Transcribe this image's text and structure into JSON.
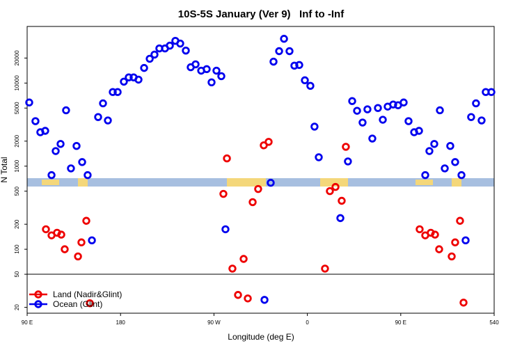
{
  "chart_data": {
    "type": "scatter",
    "title": "10S-5S January (Ver 9)   Inf to -Inf",
    "x_label": "Longitude (deg E)",
    "y_label": "N Total",
    "xlim": [
      90,
      540
    ],
    "xticks": [
      {
        "value": 90,
        "label": "90 E"
      },
      180,
      {
        "value": 270,
        "label": "90 W"
      },
      {
        "value": 360,
        "label": "0"
      },
      {
        "value": 450,
        "label": "90 E"
      },
      540
    ],
    "ylim": [
      17,
      48000
    ],
    "log_y": true,
    "yticks": [
      20,
      50,
      100,
      200,
      500,
      1000,
      2000,
      5000,
      10000,
      20000
    ],
    "hline": 50,
    "legend": "lower left",
    "series": [
      {
        "name": "Land (Nadir&Glint)",
        "color": "#ee0000",
        "x": [
          108.1,
          113.5,
          118.8,
          122.9,
          126.2,
          139.0,
          142.3,
          147.0,
          150.4,
          279.1,
          282.5,
          287.8,
          293.2,
          298.6,
          302.6,
          307.3,
          312.6,
          318.0,
          322.7,
          377.0,
          381.7,
          387.1,
          393.1,
          397.1,
          468.2,
          473.6,
          478.9,
          483.0,
          487.0,
          499.1,
          502.4,
          507.1,
          510.5
        ],
        "values": [
          174,
          147,
          158,
          150,
          100,
          82,
          121,
          220,
          22.4,
          464,
          1240,
          58.5,
          28.2,
          76.5,
          25.6,
          369,
          531,
          1780,
          1960,
          58.5,
          501,
          562,
          383,
          1710,
          174,
          147,
          158,
          150,
          100,
          82,
          121,
          220,
          22.8
        ]
      },
      {
        "name": "Ocean (Glint)",
        "color": "#0000ee",
        "x": [
          92.0,
          98.0,
          102.7,
          107.4,
          113.5,
          117.5,
          122.2,
          127.5,
          132.2,
          137.6,
          143.0,
          148.3,
          152.4,
          158.4,
          163.1,
          167.8,
          172.5,
          177.2,
          183.2,
          187.9,
          192.6,
          197.3,
          202.7,
          208.1,
          212.7,
          217.4,
          222.8,
          227.5,
          232.8,
          237.5,
          242.9,
          247.6,
          252.3,
          257.7,
          263.0,
          267.7,
          272.4,
          277.1,
          281.1,
          324.7,
          327.4,
          332.8,
          337.5,
          342.8,
          347.5,
          352.2,
          357.6,
          362.9,
          366.9,
          371.0,
          391.8,
          399.1,
          403.2,
          407.9,
          413.2,
          417.9,
          422.6,
          428.0,
          432.7,
          437.4,
          442.7,
          447.4,
          452.8,
          457.5,
          462.9,
          467.6,
          473.6,
          477.6,
          482.3,
          487.7,
          492.4,
          497.7,
          502.4,
          508.5,
          512.5,
          517.8,
          522.5,
          527.9,
          531.9,
          537.3,
          318.7
        ],
        "values": [
          5840,
          3480,
          2560,
          2660,
          780,
          1520,
          1850,
          4700,
          940,
          1750,
          1120,
          780,
          128,
          3900,
          5700,
          3550,
          7800,
          7800,
          10400,
          11700,
          11700,
          11000,
          15200,
          19600,
          22000,
          26100,
          26100,
          28200,
          32200,
          29900,
          24600,
          15500,
          16800,
          14100,
          14700,
          10200,
          14100,
          12100,
          174,
          631,
          18100,
          24200,
          34100,
          24200,
          16200,
          16500,
          10800,
          9260,
          2990,
          1280,
          237,
          1140,
          6070,
          4640,
          3350,
          4830,
          2150,
          5010,
          3620,
          5210,
          5520,
          5410,
          5840,
          3480,
          2560,
          2660,
          780,
          1520,
          1850,
          4700,
          940,
          1750,
          1120,
          780,
          128,
          3900,
          5700,
          3550,
          7800,
          7800,
          24.6
        ]
      }
    ]
  }
}
